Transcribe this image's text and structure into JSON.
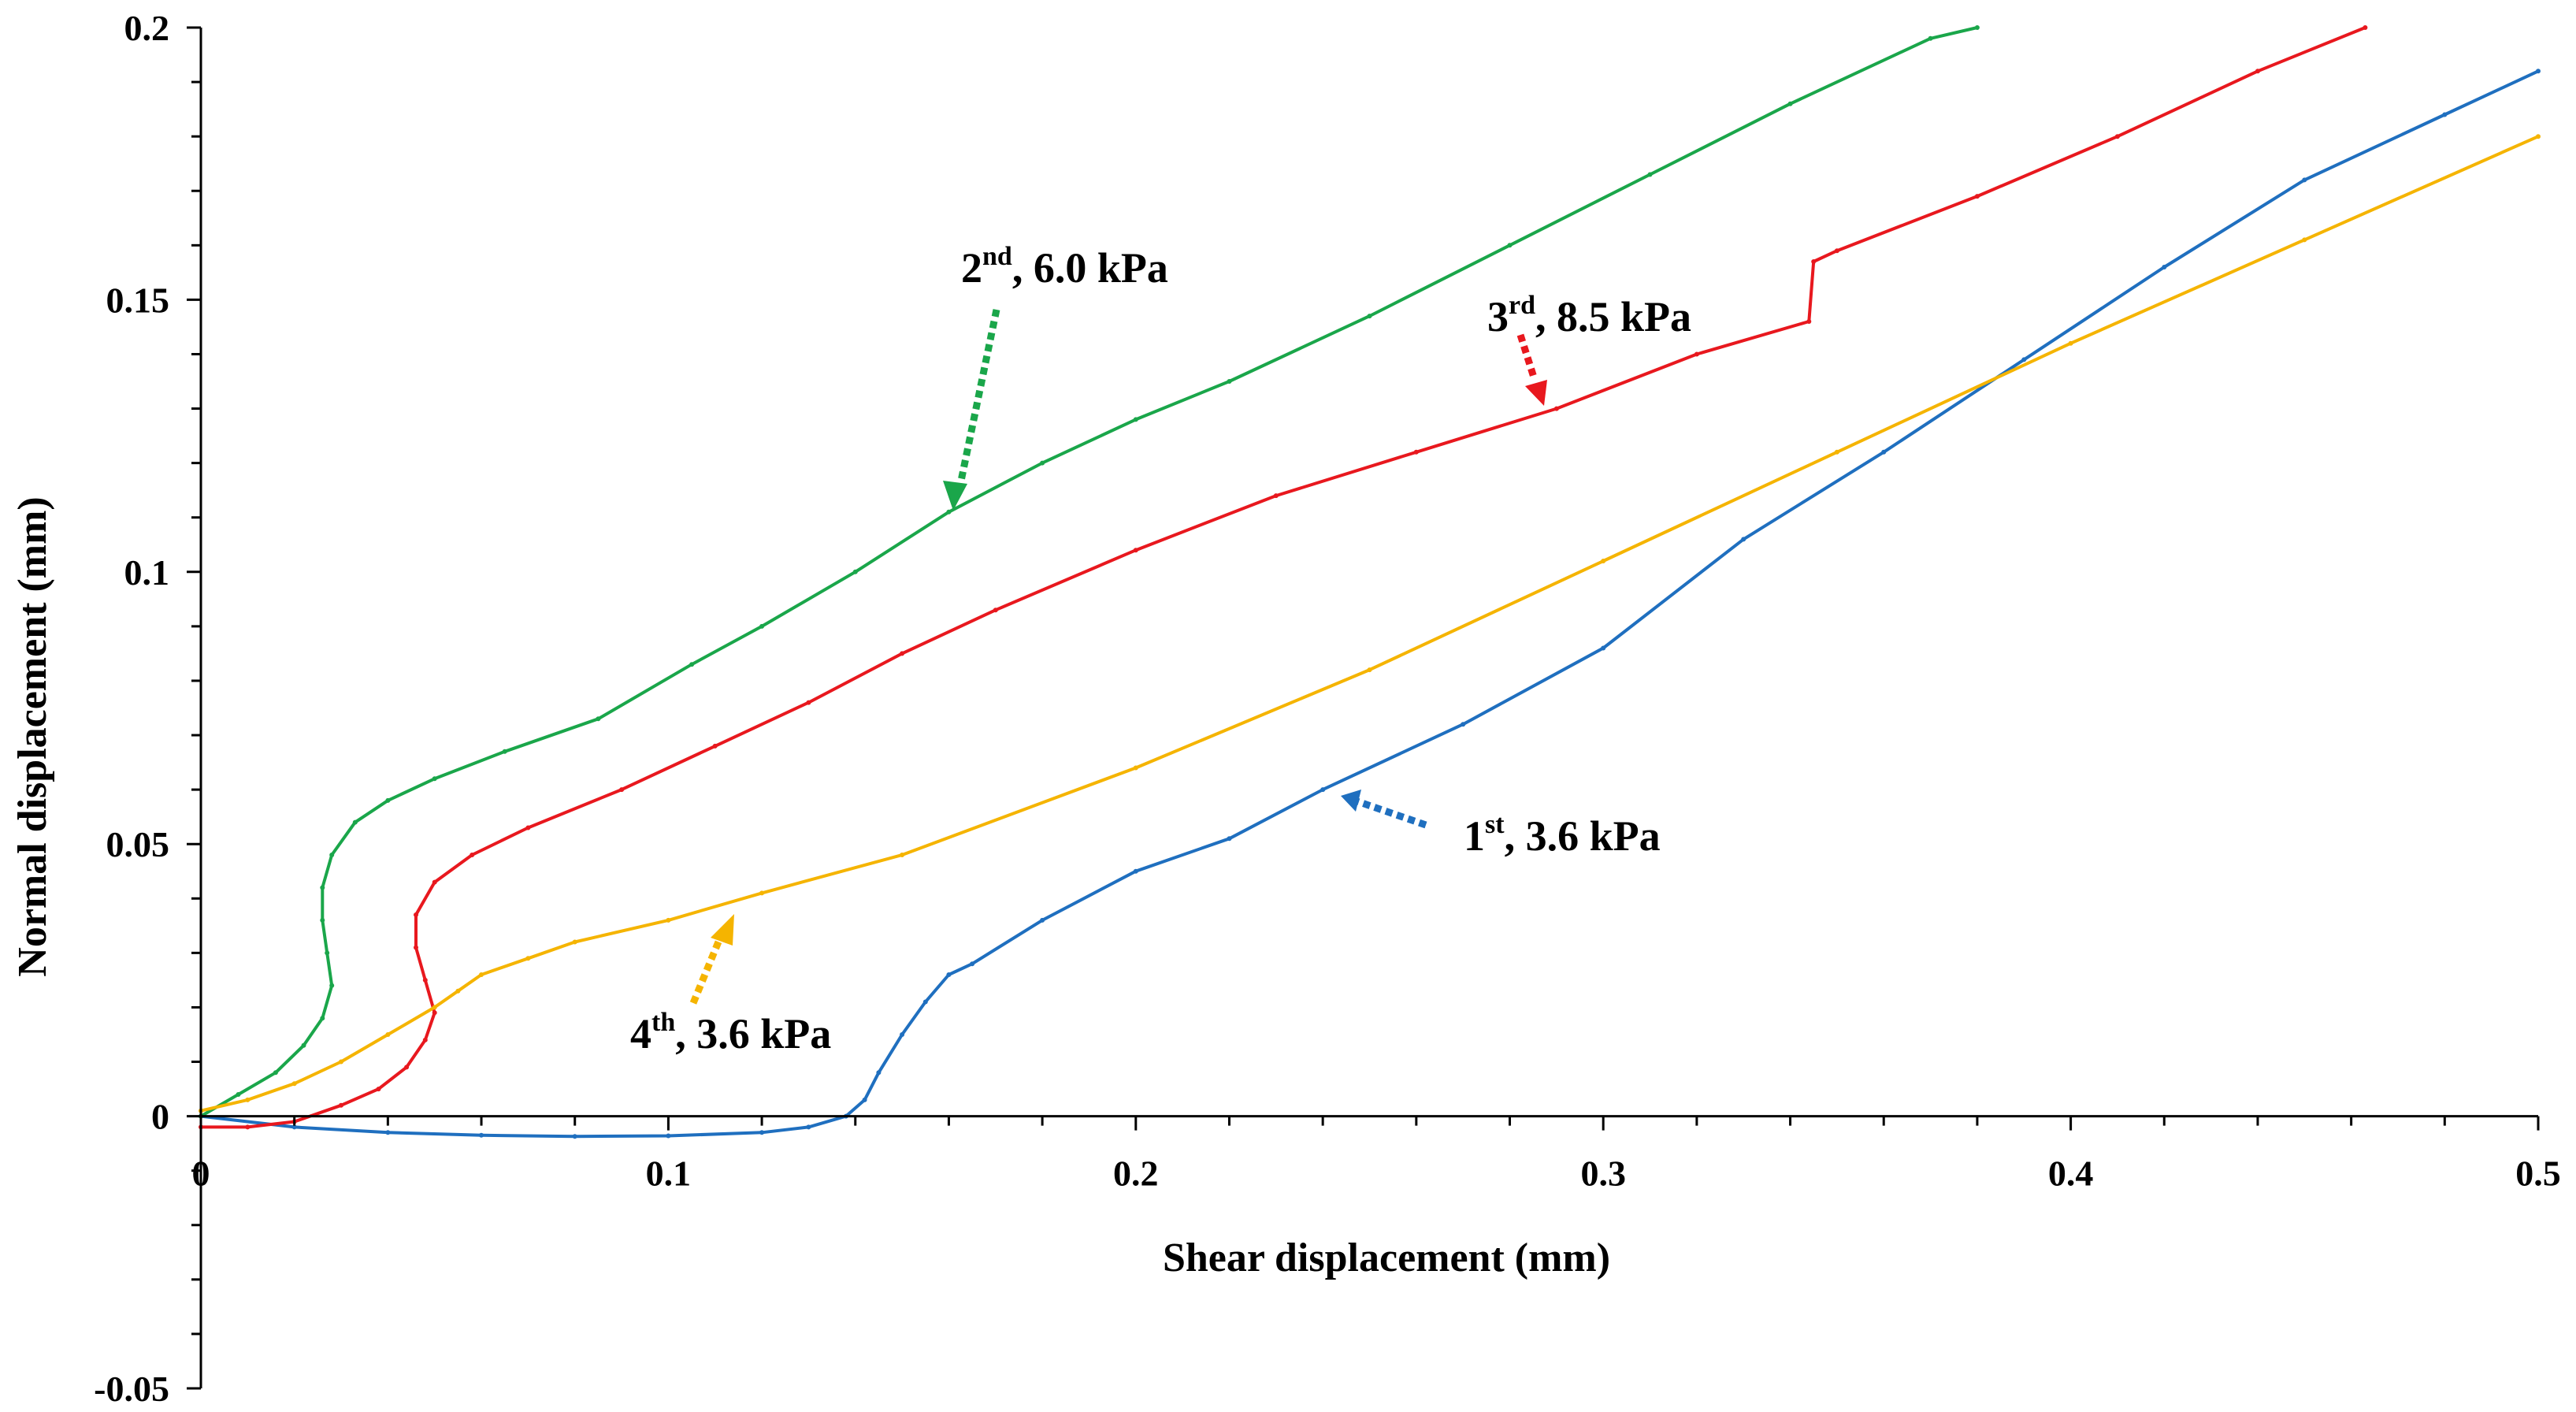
{
  "chart_data": {
    "type": "line",
    "title": "",
    "xlabel": "Shear displacement (mm)",
    "ylabel": "Normal displacement (mm)",
    "xlim": [
      0,
      0.5
    ],
    "ylim": [
      -0.05,
      0.2
    ],
    "xticks": [
      0,
      0.1,
      0.2,
      0.3,
      0.4,
      0.5
    ],
    "xtick_labels": [
      "0",
      "0.1",
      "0.2",
      "0.3",
      "0.4",
      "0.5"
    ],
    "yticks": [
      -0.05,
      0,
      0.05,
      0.1,
      0.15,
      0.2
    ],
    "ytick_labels": [
      "-0.05",
      "0",
      "0.05",
      "0.1",
      "0.15",
      "0.2"
    ],
    "grid": false,
    "series": [
      {
        "name": "1st, 3.6 kPa",
        "color": "#1f6fbf",
        "x": [
          0,
          0.02,
          0.04,
          0.06,
          0.08,
          0.1,
          0.12,
          0.13,
          0.138,
          0.142,
          0.145,
          0.15,
          0.155,
          0.16,
          0.165,
          0.18,
          0.2,
          0.22,
          0.24,
          0.27,
          0.3,
          0.33,
          0.36,
          0.39,
          0.42,
          0.45,
          0.48,
          0.5
        ],
        "values": [
          0,
          -0.002,
          -0.003,
          -0.0035,
          -0.0037,
          -0.0036,
          -0.003,
          -0.002,
          0,
          0.003,
          0.008,
          0.015,
          0.021,
          0.026,
          0.028,
          0.036,
          0.045,
          0.051,
          0.06,
          0.072,
          0.086,
          0.106,
          0.122,
          0.139,
          0.156,
          0.172,
          0.184,
          0.192
        ]
      },
      {
        "name": "2nd, 6.0 kPa",
        "color": "#1aa64a",
        "x": [
          0,
          0.008,
          0.016,
          0.022,
          0.026,
          0.028,
          0.027,
          0.026,
          0.026,
          0.028,
          0.033,
          0.04,
          0.05,
          0.065,
          0.085,
          0.105,
          0.12,
          0.14,
          0.16,
          0.18,
          0.2,
          0.22,
          0.25,
          0.28,
          0.31,
          0.34,
          0.37,
          0.38
        ],
        "values": [
          0,
          0.004,
          0.008,
          0.013,
          0.018,
          0.024,
          0.03,
          0.036,
          0.042,
          0.048,
          0.054,
          0.058,
          0.062,
          0.067,
          0.073,
          0.083,
          0.09,
          0.1,
          0.111,
          0.12,
          0.128,
          0.135,
          0.147,
          0.16,
          0.173,
          0.186,
          0.198,
          0.2
        ]
      },
      {
        "name": "3rd, 8.5 kPa",
        "color": "#e8181e",
        "x": [
          0,
          0.01,
          0.02,
          0.03,
          0.038,
          0.044,
          0.048,
          0.05,
          0.048,
          0.046,
          0.046,
          0.05,
          0.058,
          0.07,
          0.09,
          0.11,
          0.13,
          0.15,
          0.17,
          0.2,
          0.23,
          0.26,
          0.29,
          0.32,
          0.344,
          0.345,
          0.35,
          0.38,
          0.41,
          0.44,
          0.463
        ],
        "values": [
          -0.002,
          -0.002,
          -0.001,
          0.002,
          0.005,
          0.009,
          0.014,
          0.019,
          0.025,
          0.031,
          0.037,
          0.043,
          0.048,
          0.053,
          0.06,
          0.068,
          0.076,
          0.085,
          0.093,
          0.104,
          0.114,
          0.122,
          0.13,
          0.14,
          0.146,
          0.157,
          0.159,
          0.169,
          0.18,
          0.192,
          0.2
        ]
      },
      {
        "name": "4th, 3.6 kPa",
        "color": "#f5b400",
        "x": [
          0,
          0.01,
          0.02,
          0.03,
          0.04,
          0.05,
          0.055,
          0.06,
          0.07,
          0.08,
          0.1,
          0.12,
          0.15,
          0.2,
          0.25,
          0.3,
          0.35,
          0.4,
          0.45,
          0.5
        ],
        "values": [
          0.001,
          0.003,
          0.006,
          0.01,
          0.015,
          0.02,
          0.023,
          0.026,
          0.029,
          0.032,
          0.036,
          0.041,
          0.048,
          0.064,
          0.082,
          0.102,
          0.122,
          0.142,
          0.161,
          0.18
        ]
      }
    ],
    "annotations": [
      {
        "base": "1",
        "sup": "st",
        "text": ", 3.6 kPa",
        "color": "#1f6fbf",
        "target": [
          0.243,
          0.059
        ]
      },
      {
        "base": "2",
        "sup": "nd",
        "text": ", 6.0 kPa",
        "color": "#1aa64a",
        "target": [
          0.16,
          0.111
        ]
      },
      {
        "base": "3",
        "sup": "rd",
        "text": ", 8.5 kPa",
        "color": "#e8181e",
        "target": [
          0.287,
          0.129
        ]
      },
      {
        "base": "4",
        "sup": "th",
        "text": ", 3.6 kPa",
        "color": "#f5b400",
        "target": [
          0.113,
          0.037
        ]
      }
    ]
  }
}
